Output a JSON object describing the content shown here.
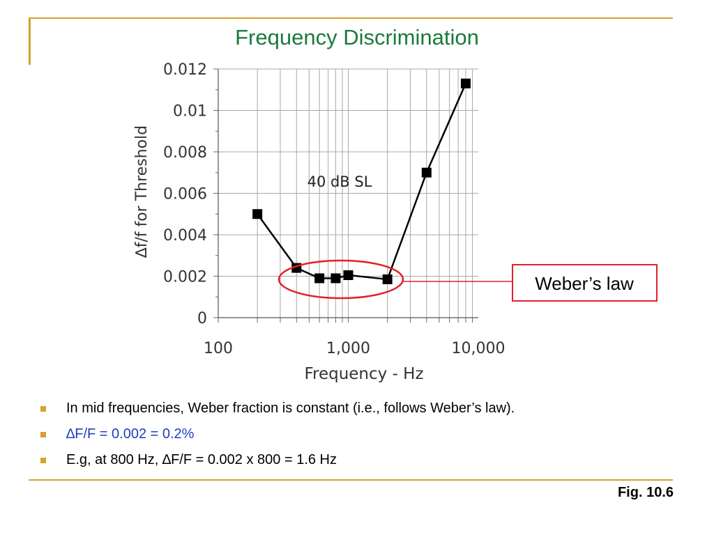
{
  "slide": {
    "title": "Frequency Discrimination",
    "figure_label": "Fig. 10.6",
    "callout": "Weber’s law",
    "bullets": [
      {
        "text": "In mid frequencies, Weber fraction is constant (i.e., follows Weber’s law).",
        "color": "#000000"
      },
      {
        "text": "∆F/F = 0.002 = 0.2%",
        "color": "#1f3fbf"
      },
      {
        "text": "E.g, at 800 Hz, ∆F/F = 0.002 x 800 = 1.6 Hz",
        "color": "#000000"
      }
    ],
    "colors": {
      "accent": "#d4a32c",
      "title": "#1a7a3c",
      "highlight": "#e0202a"
    }
  },
  "chart_data": {
    "type": "line",
    "xlabel": "Frequency - Hz",
    "ylabel": "∆f/f for Threshold",
    "x_scale": "log",
    "xlim": [
      100,
      10000
    ],
    "ylim": [
      0,
      0.012
    ],
    "x_ticks": [
      100,
      1000,
      10000
    ],
    "x_tick_labels": [
      "100",
      "1,000",
      "10,000"
    ],
    "y_ticks": [
      0,
      0.002,
      0.004,
      0.006,
      0.008,
      0.01,
      0.012
    ],
    "y_tick_labels": [
      "0",
      "0.002",
      "0.004",
      "0.006",
      "0.008",
      "0.01",
      "0.012"
    ],
    "grid": true,
    "annotation": "40 dB SL",
    "series": [
      {
        "x": [
          200,
          400,
          600,
          800,
          1000,
          2000,
          4000,
          8000
        ],
        "y": [
          0.005,
          0.0024,
          0.0019,
          0.0019,
          0.00205,
          0.00185,
          0.007,
          0.0113
        ]
      }
    ]
  }
}
